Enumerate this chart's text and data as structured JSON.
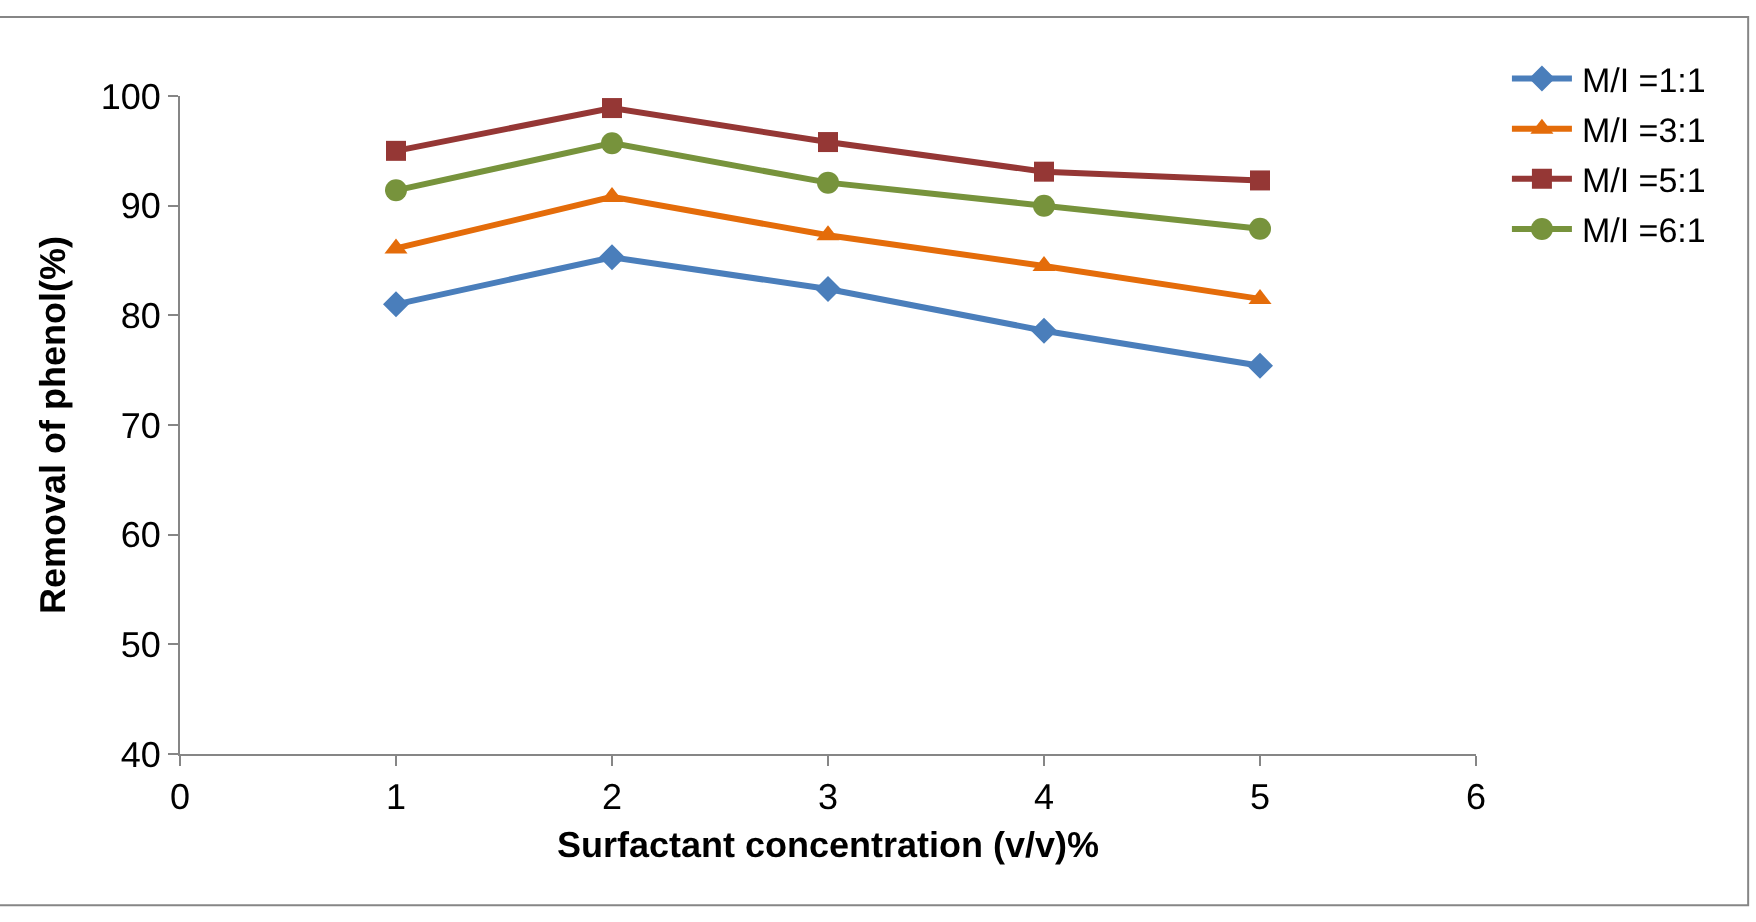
{
  "chart_data": {
    "type": "line",
    "xlabel": "Surfactant concentration (v/v)%",
    "ylabel": "Removal of phenol(%)",
    "x": [
      1,
      2,
      3,
      4,
      5
    ],
    "xlim": [
      0,
      6
    ],
    "xticks": [
      0,
      1,
      2,
      3,
      4,
      5,
      6
    ],
    "ylim": [
      40,
      100
    ],
    "yticks": [
      40,
      50,
      60,
      70,
      80,
      90,
      100
    ],
    "grid": false,
    "legend": "top right",
    "line_style": "solid",
    "series": [
      {
        "name": "M/I =1:1",
        "color": "#4a7ebb",
        "marker": "diamond",
        "values": [
          81.0,
          85.3,
          82.4,
          78.6,
          75.4
        ]
      },
      {
        "name": "M/I =3:1",
        "color": "#e46c0a",
        "marker": "triangle",
        "values": [
          86.1,
          90.8,
          87.3,
          84.5,
          81.5
        ]
      },
      {
        "name": "M/I =5:1",
        "color": "#953735",
        "marker": "square",
        "values": [
          95.0,
          98.9,
          95.8,
          93.1,
          92.3
        ]
      },
      {
        "name": "M/I =6:1",
        "color": "#77933c",
        "marker": "circle",
        "values": [
          91.4,
          95.7,
          92.1,
          90.0,
          87.9
        ]
      }
    ]
  }
}
